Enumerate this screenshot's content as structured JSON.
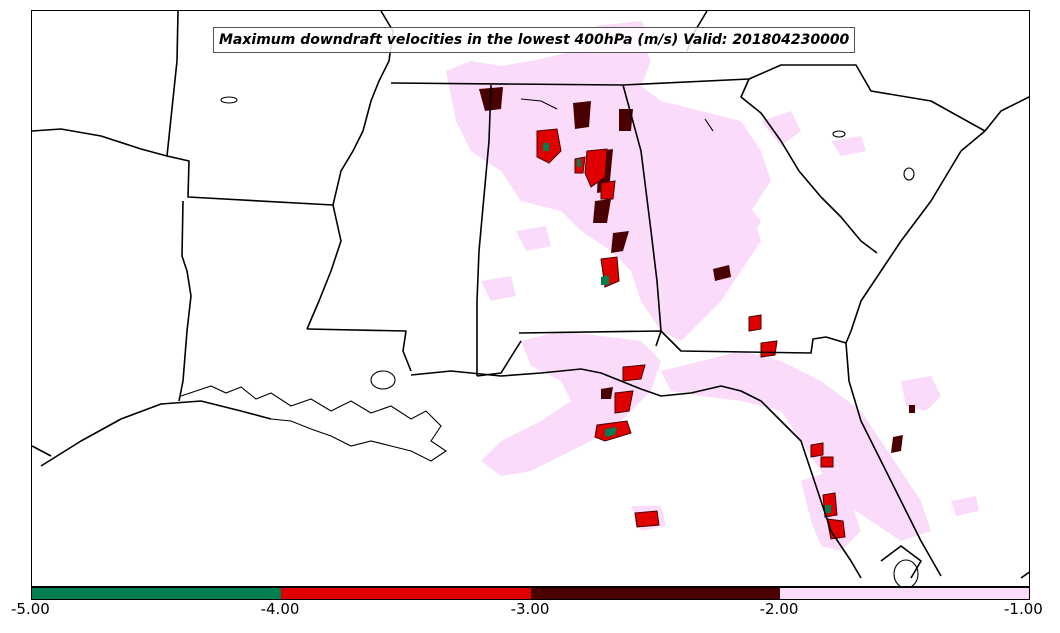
{
  "title": "Maximum downdraft velocities in the lowest 400hPa (m/s) Valid: 201804230000",
  "colorbar": {
    "ticks": [
      "-5.00",
      "-4.00",
      "-3.00",
      "-2.00",
      "-1.00"
    ],
    "bins": [
      {
        "range": [
          -5.0,
          -4.0
        ],
        "color": "#007e50"
      },
      {
        "range": [
          -4.0,
          -3.0
        ],
        "color": "#e00000"
      },
      {
        "range": [
          -3.0,
          -2.0
        ],
        "color": "#4a0000"
      },
      {
        "range": [
          -2.0,
          -1.0
        ],
        "color": "#fadcfa"
      }
    ]
  },
  "colors": {
    "weak": "#fadcfa",
    "moderate": "#e00000",
    "strong": "#4a0000",
    "extreme": "#007e50",
    "boundary": "#000000"
  }
}
